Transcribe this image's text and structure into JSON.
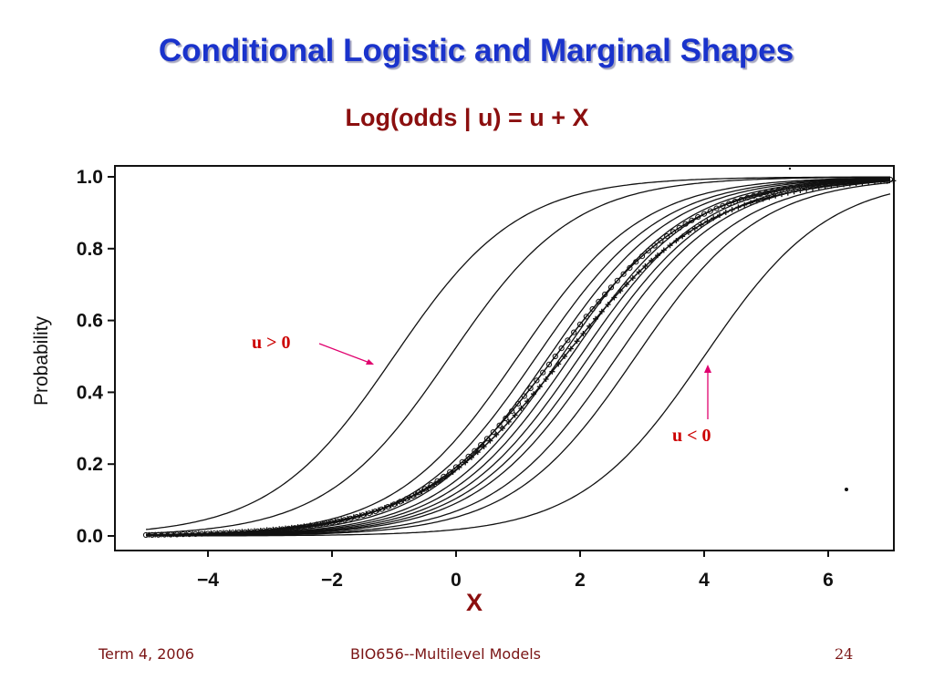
{
  "slide": {
    "title": "Conditional Logistic and Marginal Shapes",
    "formula": "Log(odds | u) = u  + X"
  },
  "annotations": {
    "positive": "u > 0",
    "negative": "u <  0"
  },
  "footer": {
    "left": "Term 4, 2006",
    "center": "BIO656--Multilevel Models",
    "page": "24"
  },
  "colors": {
    "title": "#1a33cc",
    "formula": "#8b0f0f",
    "annotation": "#cc0000",
    "arrow": "#e0006e",
    "footer": "#7a1414",
    "curves": "#111111"
  },
  "chart_data": {
    "type": "line",
    "title": "",
    "xlabel": "X",
    "ylabel": "Probability",
    "xlim": [
      -5,
      7
    ],
    "ylim": [
      0,
      1
    ],
    "xticks": [
      -4,
      -2,
      0,
      2,
      4,
      6
    ],
    "xtick_labels": [
      "−4",
      "−2",
      "0",
      "2",
      "4",
      "6"
    ],
    "yticks": [
      0,
      0.2,
      0.4,
      0.6,
      0.8,
      1.0
    ],
    "ytick_labels": [
      "0.0",
      "0.2",
      "0.4",
      "0.6",
      "0.8",
      "1.0"
    ],
    "grid": false,
    "conditional_curve_midpoints": [
      -1.0,
      -0.1,
      1.0,
      1.3,
      1.5,
      1.7,
      1.85,
      2.0,
      2.15,
      2.3,
      2.6,
      2.9,
      4.0
    ],
    "marginal_curve": {
      "midpoint": 1.6,
      "slope": 0.9,
      "marker": "circle"
    },
    "marginal_curve_2": {
      "midpoint": 1.75,
      "slope": 0.85,
      "marker": "plus"
    }
  }
}
